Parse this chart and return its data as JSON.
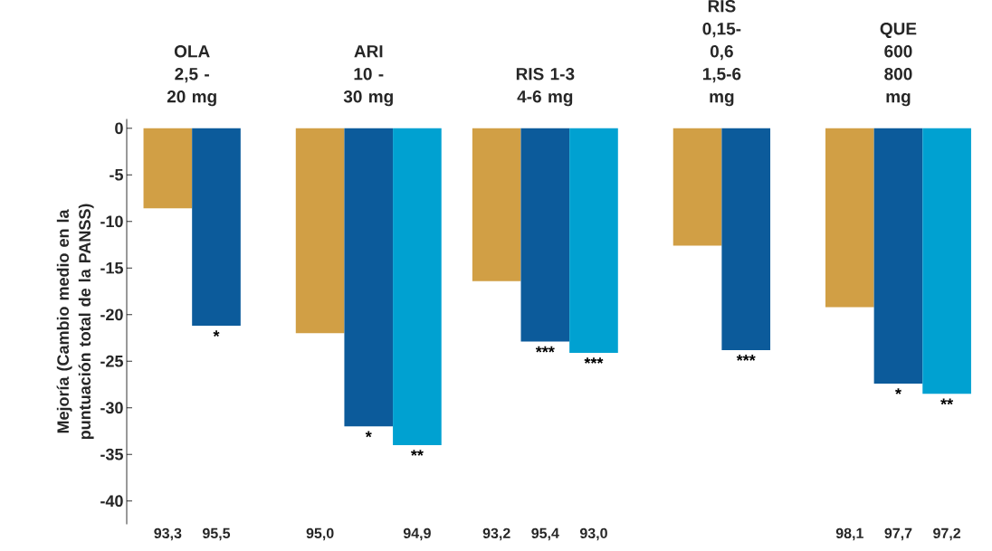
{
  "chart_data": {
    "type": "bar",
    "ylabel": "Mejoría (Cambio medio en la puntuación total de la PANSS)",
    "categories": [
      "OLA 2,5 - 20 mg",
      "ARI 10 - 30 mg",
      "RIS 1-3 4-6 mg",
      "RIS 0,15-0,6 1,5-6 mg",
      "QUE 600 800 mg"
    ],
    "series": [
      {
        "color": "#d19f45",
        "values": [
          -8.6,
          -22.0,
          -16.4,
          -12.6,
          -19.2
        ],
        "value_labels": [
          null,
          null,
          null,
          null,
          null
        ]
      },
      {
        "color": "#0c5b9b",
        "values": [
          -21.2,
          -32.0,
          -22.9,
          -23.8,
          -27.4
        ],
        "value_labels": [
          "*",
          "*",
          "***",
          "***",
          "*"
        ]
      },
      {
        "color": "#00a1d1",
        "values": [
          null,
          -34.0,
          -24.1,
          null,
          -28.5
        ],
        "value_labels": [
          null,
          "**",
          "***",
          null,
          "**"
        ]
      }
    ],
    "annotations": [
      "93,3",
      "95,5",
      "95,0",
      "94,9",
      "93,2",
      "95,4",
      "93,0",
      "98,1",
      "97,7",
      "97,2"
    ],
    "ylim": [
      -42.5,
      1
    ],
    "yticks": [
      {
        "value": 0,
        "label": "0"
      },
      {
        "value": -5,
        "label": "-5"
      },
      {
        "value": -10,
        "label": "-10"
      },
      {
        "value": -15,
        "label": "-15"
      },
      {
        "value": -20,
        "label": "-20"
      },
      {
        "value": -25,
        "label": "-25"
      },
      {
        "value": -30,
        "label": "-30"
      },
      {
        "value": -35,
        "label": "-35"
      },
      {
        "value": -40,
        "label": "-40"
      }
    ],
    "grid": false,
    "legend": false
  }
}
